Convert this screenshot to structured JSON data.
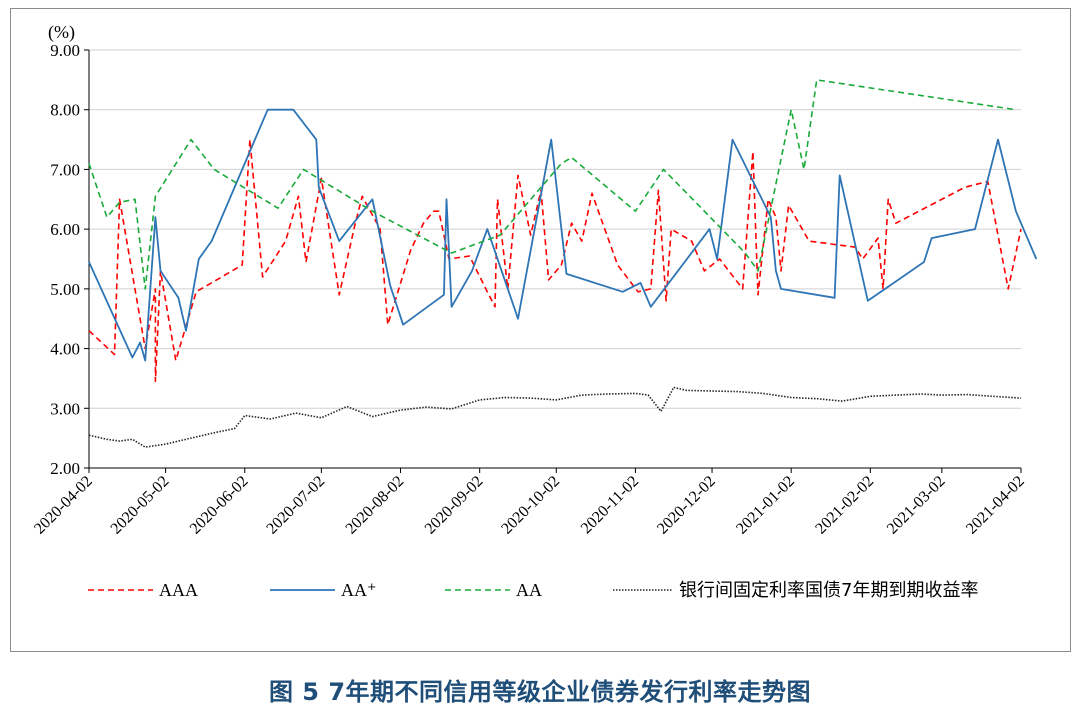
{
  "caption": "图 5 7年期不同信用等级企业债券发行利率走势图",
  "chart_data": {
    "type": "line",
    "title": "",
    "xlabel": "",
    "ylabel": "(%)",
    "ylim": [
      2.0,
      9.0
    ],
    "y_ticks": [
      "2.00",
      "3.00",
      "4.00",
      "5.00",
      "6.00",
      "7.00",
      "8.00",
      "9.00"
    ],
    "x_ticks": [
      "2020-04-02",
      "2020-05-02",
      "2020-06-02",
      "2020-07-02",
      "2020-08-02",
      "2020-09-02",
      "2020-10-02",
      "2020-11-02",
      "2020-12-02",
      "2021-01-02",
      "2021-02-02",
      "2021-03-02",
      "2021-04-02"
    ],
    "grid": "horizontal",
    "legend_position": "bottom",
    "series": [
      {
        "name": "AAA",
        "color": "#ff0000",
        "style": "dashed",
        "points": [
          [
            "2020-04-02",
            4.3
          ],
          [
            "2020-04-12",
            3.9
          ],
          [
            "2020-04-14",
            6.5
          ],
          [
            "2020-04-24",
            4.0
          ],
          [
            "2020-04-28",
            5.0
          ],
          [
            "2020-04-28",
            3.45
          ],
          [
            "2020-04-30",
            5.3
          ],
          [
            "2020-05-06",
            3.8
          ],
          [
            "2020-05-14",
            4.95
          ],
          [
            "2020-06-01",
            5.4
          ],
          [
            "2020-06-04",
            7.5
          ],
          [
            "2020-06-09",
            5.2
          ],
          [
            "2020-06-18",
            5.8
          ],
          [
            "2020-06-23",
            6.55
          ],
          [
            "2020-06-26",
            5.45
          ],
          [
            "2020-07-02",
            6.85
          ],
          [
            "2020-07-09",
            4.9
          ],
          [
            "2020-07-15",
            6.05
          ],
          [
            "2020-07-18",
            6.55
          ],
          [
            "2020-07-25",
            6.0
          ],
          [
            "2020-07-28",
            4.4
          ],
          [
            "2020-08-06",
            5.65
          ],
          [
            "2020-08-11",
            6.1
          ],
          [
            "2020-08-15",
            6.3
          ],
          [
            "2020-08-17",
            6.3
          ],
          [
            "2020-08-21",
            5.5
          ],
          [
            "2020-08-29",
            5.55
          ],
          [
            "2020-09-05",
            4.95
          ],
          [
            "2020-09-08",
            4.7
          ],
          [
            "2020-09-09",
            6.5
          ],
          [
            "2020-09-13",
            5.0
          ],
          [
            "2020-09-17",
            6.9
          ],
          [
            "2020-09-22",
            5.9
          ],
          [
            "2020-09-26",
            6.65
          ],
          [
            "2020-09-29",
            5.15
          ],
          [
            "2020-10-04",
            5.4
          ],
          [
            "2020-10-08",
            6.1
          ],
          [
            "2020-10-12",
            5.8
          ],
          [
            "2020-10-16",
            6.6
          ],
          [
            "2020-10-26",
            5.4
          ],
          [
            "2020-11-03",
            4.95
          ],
          [
            "2020-11-08",
            5.0
          ],
          [
            "2020-11-11",
            6.65
          ],
          [
            "2020-11-14",
            4.8
          ],
          [
            "2020-11-16",
            6.0
          ],
          [
            "2020-11-24",
            5.8
          ],
          [
            "2020-11-29",
            5.3
          ],
          [
            "2020-12-05",
            5.5
          ],
          [
            "2020-12-14",
            5.0
          ],
          [
            "2020-12-18",
            7.3
          ],
          [
            "2020-12-20",
            4.9
          ],
          [
            "2020-12-24",
            6.5
          ],
          [
            "2020-12-27",
            6.2
          ],
          [
            "2020-12-29",
            5.3
          ],
          [
            "2021-01-01",
            6.4
          ],
          [
            "2021-01-09",
            5.8
          ],
          [
            "2021-01-27",
            5.7
          ],
          [
            "2021-01-30",
            5.5
          ],
          [
            "2021-02-05",
            5.85
          ],
          [
            "2021-02-07",
            5.0
          ],
          [
            "2021-02-09",
            6.5
          ],
          [
            "2021-02-12",
            6.1
          ],
          [
            "2021-03-11",
            6.7
          ],
          [
            "2021-03-20",
            6.8
          ],
          [
            "2021-03-28",
            5.0
          ],
          [
            "2021-04-02",
            6.0
          ]
        ]
      },
      {
        "name": "AA⁺",
        "color": "#2e75b6",
        "style": "solid",
        "points": [
          [
            "2020-04-02",
            5.45
          ],
          [
            "2020-04-19",
            3.85
          ],
          [
            "2020-04-22",
            4.1
          ],
          [
            "2020-04-24",
            3.8
          ],
          [
            "2020-04-28",
            6.2
          ],
          [
            "2020-04-30",
            5.3
          ],
          [
            "2020-05-07",
            4.85
          ],
          [
            "2020-05-10",
            4.3
          ],
          [
            "2020-05-15",
            5.5
          ],
          [
            "2020-05-20",
            5.8
          ],
          [
            "2020-06-11",
            8.0
          ],
          [
            "2020-06-21",
            8.0
          ],
          [
            "2020-06-30",
            7.5
          ],
          [
            "2020-07-01",
            6.7
          ],
          [
            "2020-07-09",
            5.8
          ],
          [
            "2020-07-22",
            6.5
          ],
          [
            "2020-07-29",
            5.05
          ],
          [
            "2020-08-03",
            4.4
          ],
          [
            "2020-08-19",
            4.9
          ],
          [
            "2020-08-20",
            6.5
          ],
          [
            "2020-08-22",
            4.7
          ],
          [
            "2020-08-30",
            5.3
          ],
          [
            "2020-09-05",
            6.0
          ],
          [
            "2020-09-17",
            4.5
          ],
          [
            "2020-09-30",
            7.5
          ],
          [
            "2020-10-06",
            5.25
          ],
          [
            "2020-10-28",
            4.95
          ],
          [
            "2020-11-04",
            5.1
          ],
          [
            "2020-11-08",
            4.7
          ],
          [
            "2020-12-01",
            6.0
          ],
          [
            "2020-12-04",
            5.5
          ],
          [
            "2020-12-10",
            7.5
          ],
          [
            "2020-12-25",
            6.2
          ],
          [
            "2020-12-27",
            5.3
          ],
          [
            "2020-12-29",
            5.0
          ],
          [
            "2021-01-19",
            4.85
          ],
          [
            "2021-01-21",
            6.9
          ],
          [
            "2021-02-01",
            4.8
          ],
          [
            "2021-02-23",
            5.45
          ],
          [
            "2021-02-26",
            5.85
          ],
          [
            "2021-03-15",
            6.0
          ],
          [
            "2021-03-24",
            7.5
          ],
          [
            "2021-03-31",
            6.3
          ],
          [
            "2021-04-08",
            5.5
          ]
        ]
      },
      {
        "name": "AA",
        "color": "#1aaa3a",
        "style": "dashed",
        "points": [
          [
            "2020-04-02",
            7.1
          ],
          [
            "2020-04-09",
            6.2
          ],
          [
            "2020-04-14",
            6.45
          ],
          [
            "2020-04-20",
            6.5
          ],
          [
            "2020-04-24",
            5.0
          ],
          [
            "2020-04-28",
            6.55
          ],
          [
            "2020-05-12",
            7.5
          ],
          [
            "2020-05-21",
            7.0
          ],
          [
            "2020-06-15",
            6.35
          ],
          [
            "2020-06-25",
            7.0
          ],
          [
            "2020-07-22",
            6.3
          ],
          [
            "2020-08-22",
            5.6
          ],
          [
            "2020-09-10",
            5.9
          ],
          [
            "2020-10-04",
            7.1
          ],
          [
            "2020-10-08",
            7.2
          ],
          [
            "2020-11-02",
            6.3
          ],
          [
            "2020-11-13",
            7.0
          ],
          [
            "2020-12-15",
            5.6
          ],
          [
            "2020-12-20",
            5.3
          ],
          [
            "2021-01-02",
            8.0
          ],
          [
            "2021-01-07",
            7.0
          ],
          [
            "2021-01-12",
            8.5
          ],
          [
            "2021-03-31",
            8.0
          ]
        ]
      },
      {
        "name": "银行间固定利率国债7年期到期收益率",
        "color": "#262626",
        "style": "dotted",
        "points": [
          [
            "2020-04-02",
            2.55
          ],
          [
            "2020-04-09",
            2.48
          ],
          [
            "2020-04-14",
            2.45
          ],
          [
            "2020-04-19",
            2.48
          ],
          [
            "2020-04-24",
            2.35
          ],
          [
            "2020-05-02",
            2.4
          ],
          [
            "2020-05-12",
            2.5
          ],
          [
            "2020-05-22",
            2.6
          ],
          [
            "2020-05-29",
            2.66
          ],
          [
            "2020-06-02",
            2.88
          ],
          [
            "2020-06-12",
            2.82
          ],
          [
            "2020-06-22",
            2.92
          ],
          [
            "2020-07-02",
            2.84
          ],
          [
            "2020-07-12",
            3.03
          ],
          [
            "2020-07-22",
            2.86
          ],
          [
            "2020-08-02",
            2.97
          ],
          [
            "2020-08-12",
            3.02
          ],
          [
            "2020-08-22",
            2.99
          ],
          [
            "2020-09-02",
            3.14
          ],
          [
            "2020-09-12",
            3.18
          ],
          [
            "2020-09-22",
            3.17
          ],
          [
            "2020-10-02",
            3.14
          ],
          [
            "2020-10-12",
            3.22
          ],
          [
            "2020-10-22",
            3.24
          ],
          [
            "2020-11-02",
            3.25
          ],
          [
            "2020-11-07",
            3.22
          ],
          [
            "2020-11-12",
            2.95
          ],
          [
            "2020-11-17",
            3.35
          ],
          [
            "2020-11-22",
            3.3
          ],
          [
            "2020-12-02",
            3.29
          ],
          [
            "2020-12-12",
            3.28
          ],
          [
            "2020-12-22",
            3.25
          ],
          [
            "2021-01-02",
            3.18
          ],
          [
            "2021-01-12",
            3.16
          ],
          [
            "2021-01-22",
            3.12
          ],
          [
            "2021-02-02",
            3.2
          ],
          [
            "2021-02-12",
            3.22
          ],
          [
            "2021-02-22",
            3.24
          ],
          [
            "2021-03-02",
            3.22
          ],
          [
            "2021-03-12",
            3.23
          ],
          [
            "2021-03-22",
            3.2
          ],
          [
            "2021-04-02",
            3.17
          ]
        ]
      }
    ]
  }
}
